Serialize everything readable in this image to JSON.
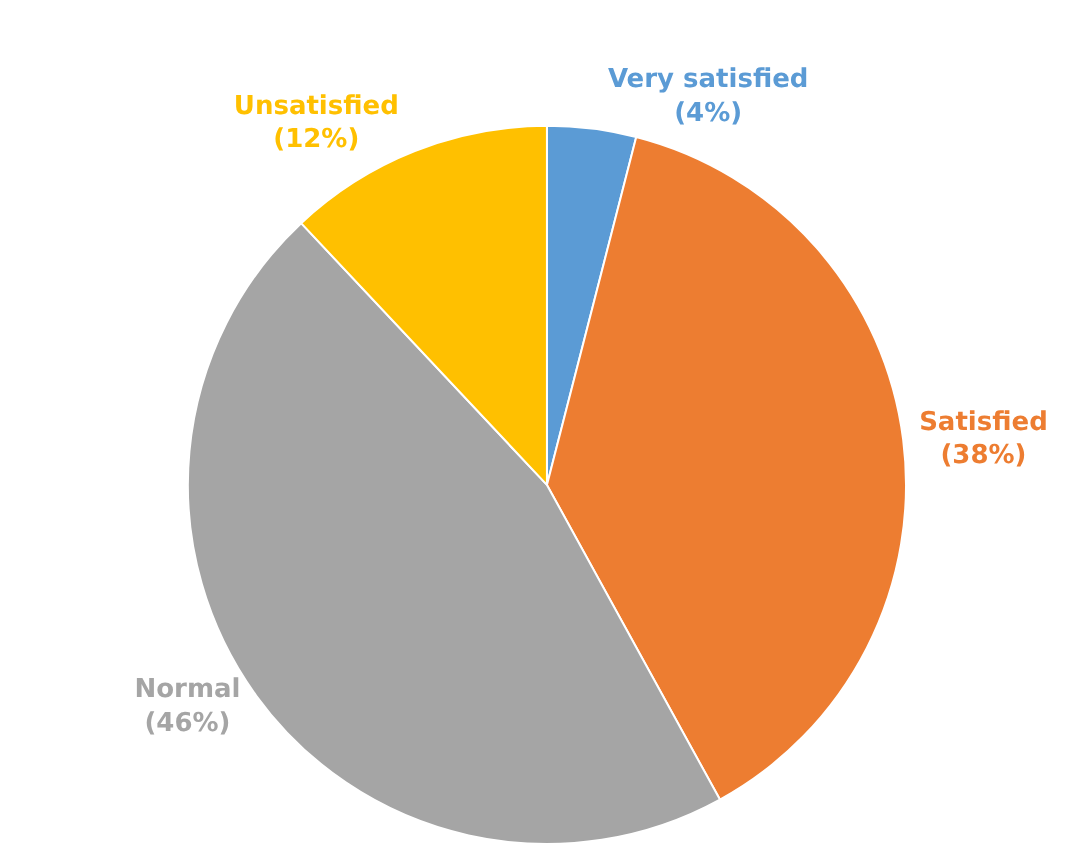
{
  "chart_data": {
    "type": "pie",
    "categories": [
      "Very satisfied",
      "Satisfied",
      "Normal",
      "Unsatisfied"
    ],
    "values": [
      4,
      38,
      46,
      12
    ],
    "value_labels": [
      "(4%)",
      "(38%)",
      "(46%)",
      "(12%)"
    ],
    "colors": [
      "#5b9bd5",
      "#ed7d31",
      "#a5a5a5",
      "#ffc000"
    ],
    "legend": false
  }
}
